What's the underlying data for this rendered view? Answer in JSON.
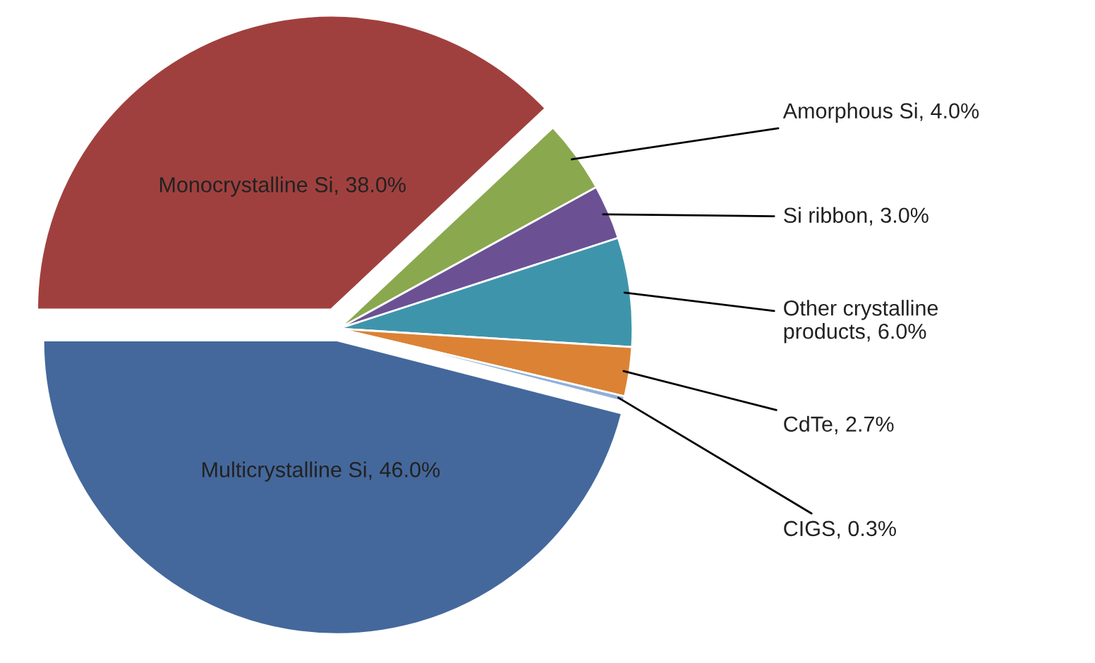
{
  "chart_data": {
    "type": "pie",
    "categories": [
      "Monocrystalline Si",
      "Amorphous Si",
      "Si ribbon",
      "Other crystalline products",
      "CdTe",
      "CIGS",
      "Multicrystalline Si"
    ],
    "values": [
      38.0,
      4.0,
      3.0,
      6.0,
      2.7,
      0.3,
      46.0
    ],
    "value_labels": [
      "38.0%",
      "4.0%",
      "3.0%",
      "6.0%",
      "2.7%",
      "0.3%",
      "46.0%"
    ],
    "colors": [
      "#a0403e",
      "#8aa84e",
      "#6b5194",
      "#3e95ab",
      "#dc8234",
      "#8fb0d8",
      "#44689c"
    ],
    "legend": false
  }
}
